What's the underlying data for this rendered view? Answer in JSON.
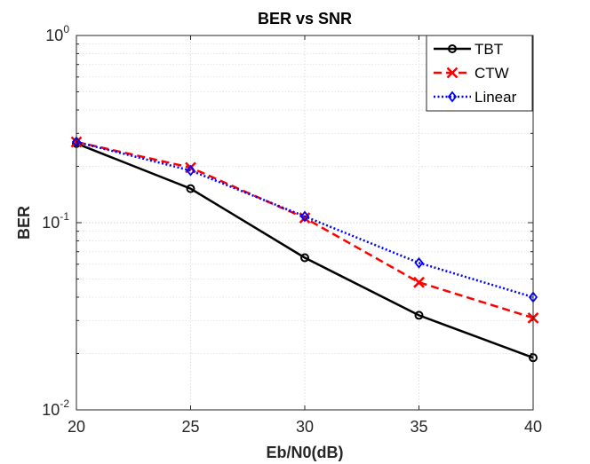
{
  "chart_data": {
    "type": "line",
    "title": "BER vs SNR",
    "xlabel": "Eb/N0(dB)",
    "ylabel": "BER",
    "x": [
      20,
      25,
      30,
      35,
      40
    ],
    "xlim": [
      20,
      40
    ],
    "ylim": [
      0.01,
      1
    ],
    "yscale": "log",
    "grid": true,
    "legend_position": "top-right",
    "x_ticks": [
      "20",
      "25",
      "30",
      "35",
      "40"
    ],
    "y_ticks": [
      {
        "base": "10",
        "exp": "-2",
        "value": 0.01
      },
      {
        "base": "10",
        "exp": "-1",
        "value": 0.1
      },
      {
        "base": "10",
        "exp": "0",
        "value": 1
      }
    ],
    "series": [
      {
        "name": "TBT",
        "values": [
          0.265,
          0.152,
          0.065,
          0.032,
          0.019
        ],
        "color": "#000000",
        "dash": "solid",
        "marker": "circle"
      },
      {
        "name": "CTW",
        "values": [
          0.27,
          0.197,
          0.106,
          0.048,
          0.031
        ],
        "color": "#ff0000",
        "dash": "dashed",
        "marker": "x"
      },
      {
        "name": "Linear",
        "values": [
          0.27,
          0.19,
          0.108,
          0.061,
          0.04
        ],
        "color": "#0000ff",
        "dash": "dotted",
        "marker": "diamond"
      }
    ]
  }
}
